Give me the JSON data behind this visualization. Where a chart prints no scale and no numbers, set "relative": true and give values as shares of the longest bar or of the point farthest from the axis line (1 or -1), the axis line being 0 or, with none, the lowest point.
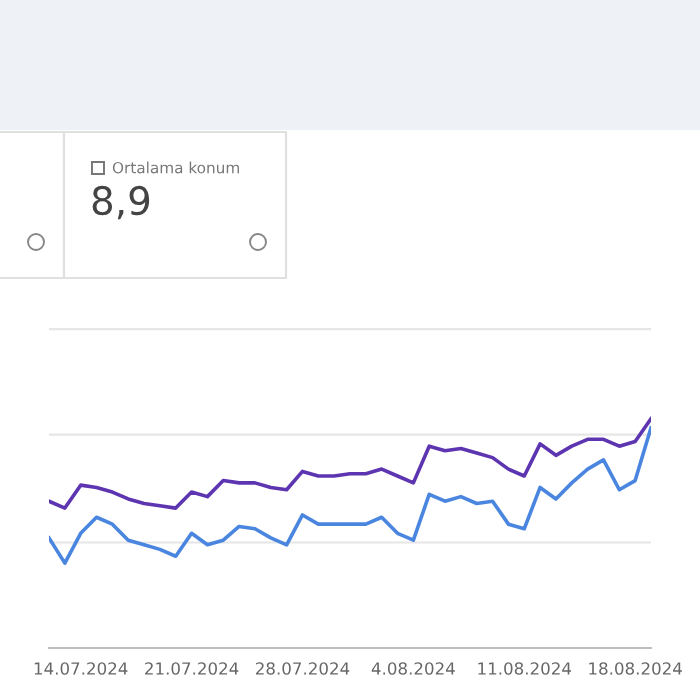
{
  "chart_data": [
    {
      "type": "other",
      "title": "Ortalama konum",
      "annotations": [
        "8,9"
      ]
    },
    {
      "type": "line",
      "relative": true,
      "ref_lines": [
        {
          "axis": "y",
          "value": 0.46,
          "color": "#e6e6e6"
        },
        {
          "axis": "y",
          "value": 0.93,
          "color": "#e6e6e6"
        },
        {
          "axis": "y",
          "value": 1.39,
          "color": "#e6e6e6"
        }
      ],
      "line_style": "solid",
      "marker": "none",
      "x": [
        "2024-07-12",
        "2024-07-13",
        "2024-07-14",
        "2024-07-15",
        "2024-07-16",
        "2024-07-17",
        "2024-07-18",
        "2024-07-19",
        "2024-07-20",
        "2024-07-21",
        "2024-07-22",
        "2024-07-23",
        "2024-07-24",
        "2024-07-25",
        "2024-07-26",
        "2024-07-27",
        "2024-07-28",
        "2024-07-29",
        "2024-07-30",
        "2024-07-31",
        "2024-08-01",
        "2024-08-02",
        "2024-08-03",
        "2024-08-04",
        "2024-08-05",
        "2024-08-06",
        "2024-08-07",
        "2024-08-08",
        "2024-08-09",
        "2024-08-10",
        "2024-08-11",
        "2024-08-12",
        "2024-08-13",
        "2024-08-14",
        "2024-08-15",
        "2024-08-16",
        "2024-08-17",
        "2024-08-18",
        "2024-08-19"
      ],
      "xlim": [
        "2024-07-12",
        "2024-08-19"
      ],
      "xticks": [
        {
          "value": "2024-07-14",
          "label": "14.07.2024"
        },
        {
          "value": "2024-07-21",
          "label": "21.07.2024"
        },
        {
          "value": "2024-07-28",
          "label": "28.07.2024"
        },
        {
          "value": "2024-08-04",
          "label": "4.08.2024"
        },
        {
          "value": "2024-08-11",
          "label": "11.08.2024"
        },
        {
          "value": "2024-08-18",
          "label": "18.08.2024"
        }
      ],
      "series": [
        {
          "color": "#5e35b1",
          "values": [
            0.64,
            0.61,
            0.71,
            0.7,
            0.68,
            0.65,
            0.63,
            0.62,
            0.61,
            0.68,
            0.66,
            0.73,
            0.72,
            0.72,
            0.7,
            0.69,
            0.77,
            0.75,
            0.75,
            0.76,
            0.76,
            0.78,
            0.75,
            0.72,
            0.88,
            0.86,
            0.87,
            0.85,
            0.83,
            0.78,
            0.75,
            0.89,
            0.84,
            0.88,
            0.91,
            0.91,
            0.88,
            0.9,
            1
          ]
        },
        {
          "color": "#4a86e0",
          "values": [
            0.48,
            0.37,
            0.5,
            0.57,
            0.54,
            0.47,
            0.45,
            0.43,
            0.4,
            0.5,
            0.45,
            0.47,
            0.53,
            0.52,
            0.48,
            0.45,
            0.58,
            0.54,
            0.54,
            0.54,
            0.54,
            0.57,
            0.5,
            0.47,
            0.67,
            0.64,
            0.66,
            0.63,
            0.64,
            0.54,
            0.52,
            0.7,
            0.65,
            0.72,
            0.78,
            0.82,
            0.69,
            0.73,
            0.96
          ]
        }
      ]
    }
  ]
}
